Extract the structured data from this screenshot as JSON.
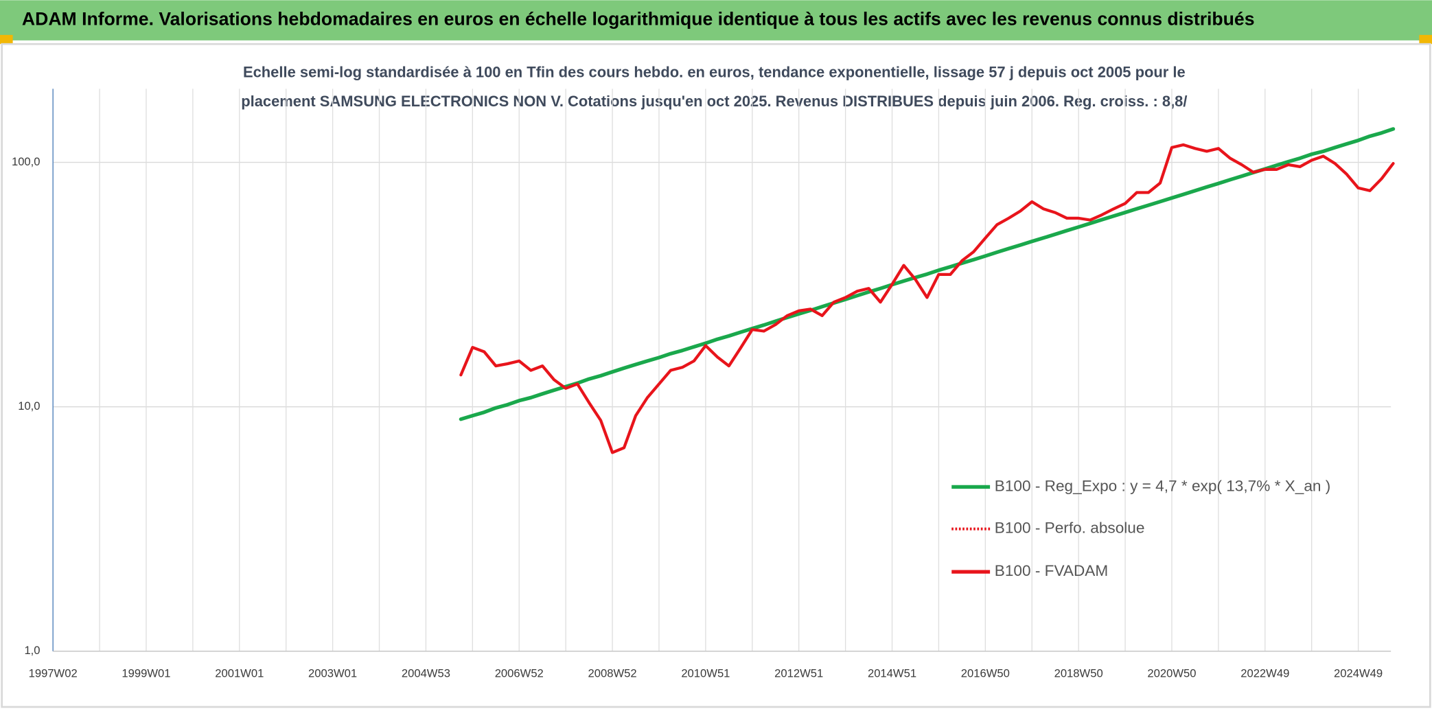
{
  "header": {
    "title": "ADAM Informe. Valorisations hebdomadaires en euros en échelle logarithmique identique à tous les actifs avec les revenus connus distribués"
  },
  "chart_data": {
    "type": "line",
    "title": [
      "Echelle semi-log standardisée à 100 en Tfin des cours hebdo. en euros, tendance exponentielle, lissage 57 j depuis oct 2005 pour le",
      "placement SAMSUNG ELECTRONICS NON V. Cotations jusqu'en oct 2025. Revenus DISTRIBUES depuis juin 2006. Reg. croiss. : 8,8/"
    ],
    "log_scale": true,
    "grid": true,
    "legend": "right",
    "ylim": [
      1,
      200
    ],
    "yticks": [
      {
        "value": 1,
        "label": "1,0"
      },
      {
        "value": 10,
        "label": "10,0"
      },
      {
        "value": 100,
        "label": "100,0"
      }
    ],
    "categories": [
      "1997W02",
      null,
      null,
      null,
      null,
      null,
      null,
      null,
      "1999W01",
      null,
      null,
      null,
      null,
      null,
      null,
      null,
      "2001W01",
      null,
      null,
      null,
      null,
      null,
      null,
      null,
      "2003W01",
      null,
      null,
      null,
      null,
      null,
      null,
      null,
      "2004W53",
      null,
      null,
      null,
      null,
      null,
      null,
      null,
      "2006W52",
      null,
      null,
      null,
      null,
      null,
      null,
      null,
      "2008W52",
      null,
      null,
      null,
      null,
      null,
      null,
      null,
      "2010W51",
      null,
      null,
      null,
      null,
      null,
      null,
      null,
      "2012W51",
      null,
      null,
      null,
      null,
      null,
      null,
      null,
      "2014W51",
      null,
      null,
      null,
      null,
      null,
      null,
      null,
      "2016W50",
      null,
      null,
      null,
      null,
      null,
      null,
      null,
      "2018W50",
      null,
      null,
      null,
      null,
      null,
      null,
      null,
      "2020W50",
      null,
      null,
      null,
      null,
      null,
      null,
      null,
      "2022W49",
      null,
      null,
      null,
      null,
      null,
      null,
      null,
      "2024W49",
      null,
      null,
      null
    ],
    "series": [
      {
        "name": "B100 - Reg_Expo : y = 4,7 * exp( 13,7% *  X_an )",
        "color": "#1aa84c",
        "dash": "solid",
        "values": [
          null,
          null,
          null,
          null,
          null,
          null,
          null,
          null,
          null,
          null,
          null,
          null,
          null,
          null,
          null,
          null,
          null,
          null,
          null,
          null,
          null,
          null,
          null,
          null,
          null,
          null,
          null,
          null,
          null,
          null,
          null,
          null,
          null,
          null,
          null,
          8.9,
          9.2,
          9.5,
          9.9,
          10.2,
          10.6,
          10.9,
          11.3,
          11.7,
          12.1,
          12.5,
          13.0,
          13.4,
          13.9,
          14.4,
          14.9,
          15.4,
          15.9,
          16.5,
          17.0,
          17.6,
          18.2,
          18.9,
          19.5,
          20.2,
          20.9,
          21.6,
          22.4,
          23.2,
          24.0,
          24.8,
          25.7,
          26.6,
          27.5,
          28.5,
          29.5,
          30.5,
          31.6,
          32.7,
          33.8,
          34.9,
          36.2,
          37.4,
          38.7,
          40.0,
          41.4,
          42.9,
          44.4,
          45.9,
          47.5,
          49.1,
          50.8,
          52.6,
          54.4,
          56.3,
          58.3,
          60.3,
          62.4,
          64.6,
          66.8,
          69.1,
          71.5,
          74.0,
          76.6,
          79.3,
          82.0,
          84.9,
          87.8,
          90.9,
          94.0,
          97.3,
          100.7,
          104,
          108,
          111,
          115,
          119,
          123,
          128,
          132,
          137
        ]
      },
      {
        "name": "B100 - Perfo. absolue",
        "color": "#e8141b",
        "dash": "dotted"
      },
      {
        "name": "B100 - FVADAM",
        "color": "#e8141b",
        "dash": "solid",
        "values": [
          null,
          null,
          null,
          null,
          null,
          null,
          null,
          null,
          null,
          null,
          null,
          null,
          null,
          null,
          null,
          null,
          null,
          null,
          null,
          null,
          null,
          null,
          null,
          null,
          null,
          null,
          null,
          null,
          null,
          null,
          null,
          null,
          null,
          null,
          null,
          13.5,
          17.5,
          16.8,
          14.7,
          15,
          15.4,
          14.1,
          14.7,
          12.9,
          11.9,
          12.4,
          10.4,
          8.8,
          6.5,
          6.8,
          9.2,
          10.9,
          12.4,
          14.1,
          14.5,
          15.4,
          17.8,
          16.0,
          14.7,
          17.4,
          20.7,
          20.4,
          21.7,
          23.6,
          24.7,
          25.1,
          23.6,
          26.8,
          28.0,
          29.7,
          30.5,
          26.8,
          31.7,
          37.9,
          33.2,
          28.0,
          34.8,
          34.8,
          39.6,
          43.1,
          49.0,
          55.6,
          59.1,
          63.2,
          69.0,
          64.5,
          62.3,
          59.1,
          59.1,
          58.1,
          61,
          64.5,
          67.9,
          75.3,
          75.3,
          82.3,
          115,
          118,
          114,
          111,
          114,
          104,
          97.8,
          91.1,
          93.6,
          93.6,
          97.8,
          96,
          102,
          106,
          99,
          89.5,
          78.6,
          76.6,
          85.7,
          99
        ]
      }
    ]
  }
}
